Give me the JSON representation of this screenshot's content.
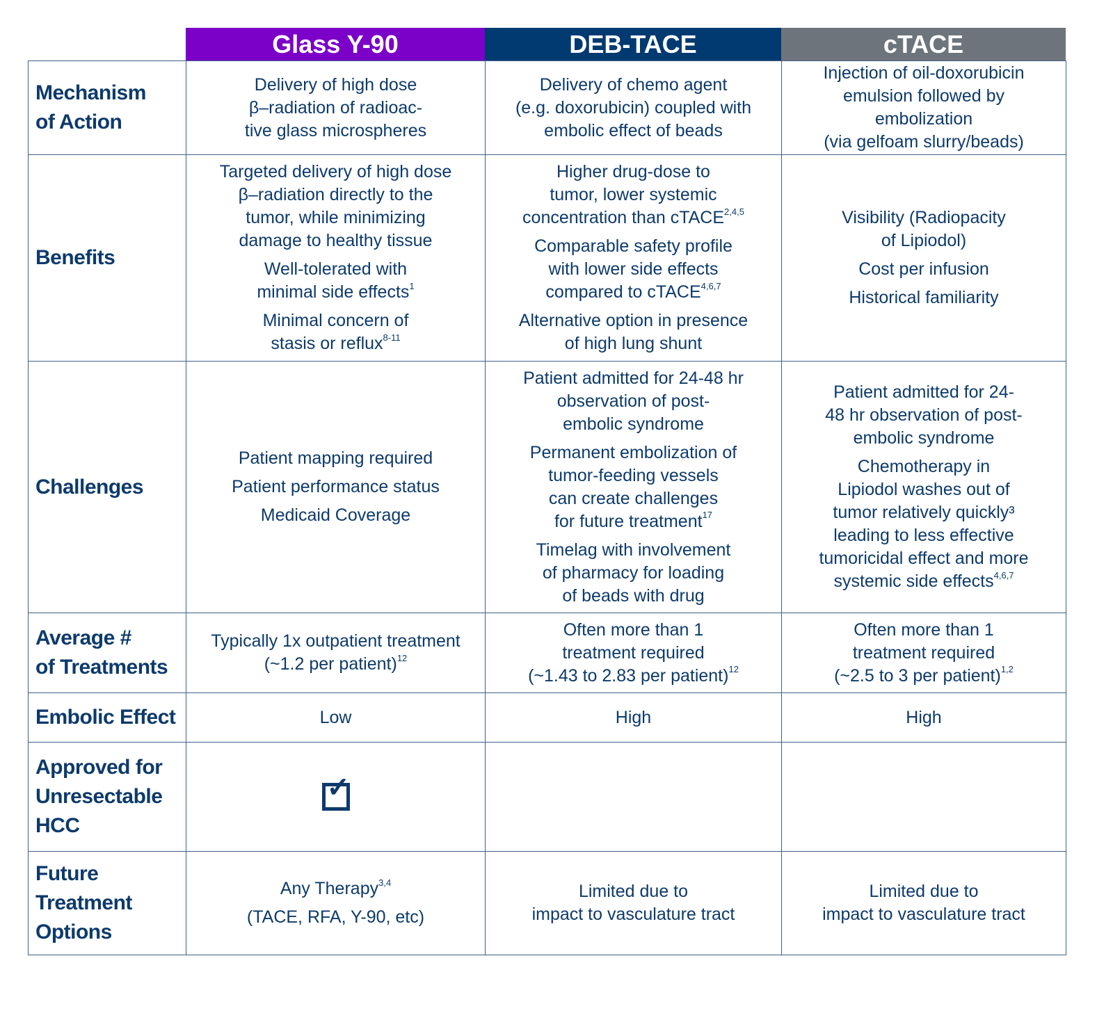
{
  "columns": [
    {
      "label": "Glass Y-90",
      "color": "#7b00c8"
    },
    {
      "label": "DEB-TACE",
      "color": "#003a70"
    },
    {
      "label": "cTACE",
      "color": "#6d747c"
    }
  ],
  "rows": [
    {
      "label": "Mechanism\nof Action",
      "cells": [
        {
          "paras": [
            {
              "text": "Delivery of high dose\nβ–radiation of radioac-\ntive glass microspheres"
            }
          ]
        },
        {
          "paras": [
            {
              "text": "Delivery of chemo agent\n(e.g. doxorubicin) coupled with\nembolic effect of beads"
            }
          ]
        },
        {
          "paras": [
            {
              "text": "Injection of oil-doxorubicin\nemulsion followed by\nembolization\n(via gelfoam slurry/beads)"
            }
          ]
        }
      ]
    },
    {
      "label": "Benefits",
      "cells": [
        {
          "paras": [
            {
              "text": "Targeted delivery of high dose\nβ–radiation directly to the\ntumor, while minimizing\ndamage to healthy tissue"
            },
            {
              "text": "Well-tolerated with\nminimal side effects",
              "sup": "1"
            },
            {
              "text": "Minimal concern of\nstasis or reflux",
              "sup": "8-11"
            }
          ]
        },
        {
          "paras": [
            {
              "text": "Higher drug-dose to\ntumor, lower systemic\nconcentration than cTACE",
              "sup": "2,4,5"
            },
            {
              "text": "Comparable safety profile\nwith lower side effects\ncompared to cTACE",
              "sup": "4,6,7"
            },
            {
              "text": "Alternative option in presence\nof high lung shunt"
            }
          ]
        },
        {
          "paras": [
            {
              "text": "Visibility (Radiopacity\nof Lipiodol)"
            },
            {
              "text": "Cost per infusion"
            },
            {
              "text": "Historical familiarity"
            }
          ]
        }
      ]
    },
    {
      "label": "Challenges",
      "cells": [
        {
          "paras": [
            {
              "text": "Patient mapping required"
            },
            {
              "text": "Patient performance status"
            },
            {
              "text": "Medicaid Coverage"
            }
          ]
        },
        {
          "paras": [
            {
              "text": "Patient admitted for 24-48 hr\nobservation of post-\nembolic syndrome"
            },
            {
              "text": "Permanent embolization of\ntumor-feeding vessels\ncan create challenges\nfor future treatment",
              "sup": "17"
            },
            {
              "text": "Timelag with involvement\nof pharmacy for loading\nof beads with drug"
            }
          ]
        },
        {
          "paras": [
            {
              "text": "Patient admitted for 24-\n48 hr observation of post-\nembolic syndrome"
            },
            {
              "text": "Chemotherapy in\nLipiodol washes out of\ntumor relatively quickly³\nleading to less effective\ntumoricidal effect and more\nsystemic side effects",
              "sup": "4,6,7"
            }
          ]
        }
      ]
    },
    {
      "label": "Average #\nof Treatments",
      "cells": [
        {
          "paras": [
            {
              "text": "Typically 1x outpatient treatment\n(~1.2 per patient)",
              "sup": "12"
            }
          ]
        },
        {
          "paras": [
            {
              "text": "Often more than 1\ntreatment required\n(~1.43 to 2.83 per patient)",
              "sup": "12"
            }
          ]
        },
        {
          "paras": [
            {
              "text": "Often more than 1\ntreatment required\n(~2.5 to 3 per patient)",
              "sup": "1,2"
            }
          ]
        }
      ]
    },
    {
      "label": "Embolic Effect",
      "cells": [
        {
          "paras": [
            {
              "text": "Low"
            }
          ]
        },
        {
          "paras": [
            {
              "text": "High"
            }
          ]
        },
        {
          "paras": [
            {
              "text": "High"
            }
          ]
        }
      ]
    },
    {
      "label": "Approved for\nUnresectable\nHCC",
      "cells": [
        {
          "check": true,
          "icon": "checkbox-checked-icon"
        },
        {
          "paras": []
        },
        {
          "paras": []
        }
      ]
    },
    {
      "label": "Future\nTreatment\nOptions",
      "cells": [
        {
          "paras": [
            {
              "text": "Any Therapy",
              "sup": "3,4"
            },
            {
              "text": "(TACE, RFA, Y-90, etc)"
            }
          ]
        },
        {
          "paras": [
            {
              "text": "Limited due to\nimpact to vasculature tract"
            }
          ]
        },
        {
          "paras": [
            {
              "text": "Limited due to\nimpact to vasculature tract"
            }
          ]
        }
      ]
    }
  ]
}
